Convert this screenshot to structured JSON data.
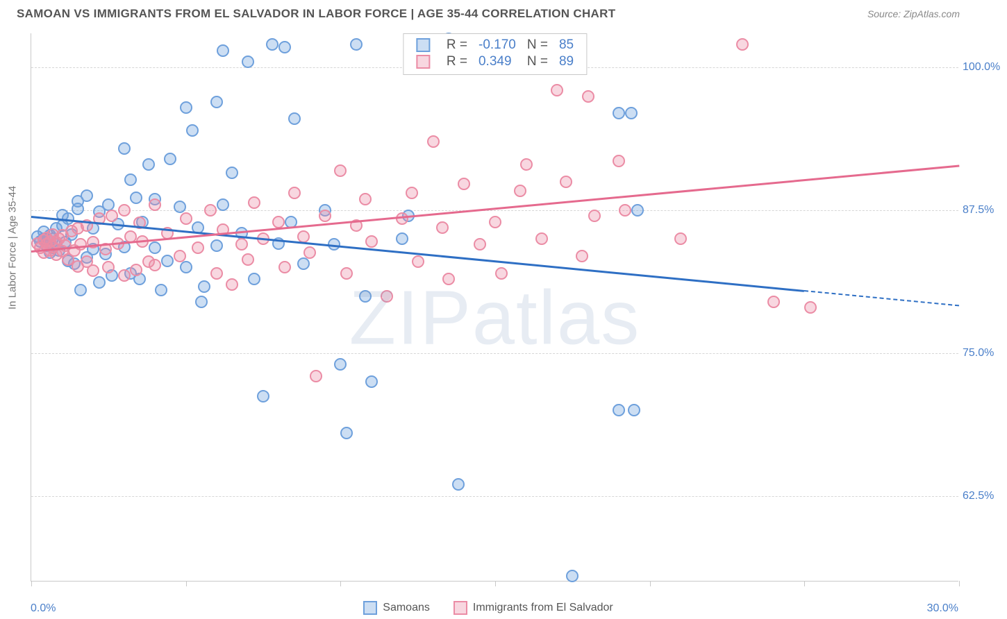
{
  "title": "SAMOAN VS IMMIGRANTS FROM EL SALVADOR IN LABOR FORCE | AGE 35-44 CORRELATION CHART",
  "source": "Source: ZipAtlas.com",
  "watermark": "ZIPatlas",
  "chart": {
    "type": "scatter",
    "ylabel": "In Labor Force | Age 35-44",
    "xlim": [
      0,
      30
    ],
    "ylim": [
      55,
      103
    ],
    "x_ticks": [
      0,
      5,
      10,
      15,
      20,
      25,
      30
    ],
    "x_tick_labels": [
      "0.0%",
      "30.0%"
    ],
    "y_ticks": [
      62.5,
      75.0,
      87.5,
      100.0
    ],
    "y_tick_labels": [
      "62.5%",
      "75.0%",
      "87.5%",
      "100.0%"
    ],
    "background_color": "#ffffff",
    "grid_color": "#d6d6d6",
    "axis_color": "#c8c8c8",
    "label_color": "#4a7fc9",
    "marker_size": 18,
    "series": [
      {
        "name": "Samoans",
        "color_fill": "rgba(110,160,220,0.35)",
        "color_border": "#6ea0dc",
        "line_color": "#2e6fc4",
        "R": "-0.170",
        "N": "85",
        "trend": {
          "x1": 0,
          "y1": 87.0,
          "x2": 25,
          "y2": 80.5,
          "dash_x2": 30,
          "dash_y2": 79.2
        },
        "points": [
          [
            0.2,
            85.2
          ],
          [
            0.3,
            84.8
          ],
          [
            0.4,
            85.0
          ],
          [
            0.4,
            85.6
          ],
          [
            0.5,
            85.1
          ],
          [
            0.5,
            84.4
          ],
          [
            0.6,
            85.3
          ],
          [
            0.6,
            83.8
          ],
          [
            0.7,
            85.0
          ],
          [
            0.7,
            84.2
          ],
          [
            0.8,
            84.5
          ],
          [
            0.8,
            85.9
          ],
          [
            0.9,
            84.0
          ],
          [
            1.0,
            86.2
          ],
          [
            1.0,
            87.1
          ],
          [
            1.1,
            84.7
          ],
          [
            1.2,
            86.8
          ],
          [
            1.2,
            83.1
          ],
          [
            1.3,
            85.4
          ],
          [
            1.4,
            82.8
          ],
          [
            1.5,
            88.3
          ],
          [
            1.5,
            87.6
          ],
          [
            1.6,
            80.5
          ],
          [
            1.8,
            83.4
          ],
          [
            1.8,
            88.8
          ],
          [
            2.0,
            84.1
          ],
          [
            2.0,
            85.9
          ],
          [
            2.2,
            81.2
          ],
          [
            2.2,
            87.4
          ],
          [
            2.4,
            83.7
          ],
          [
            2.5,
            88.0
          ],
          [
            2.6,
            81.8
          ],
          [
            2.8,
            86.3
          ],
          [
            3.0,
            84.3
          ],
          [
            3.0,
            92.9
          ],
          [
            3.2,
            82.0
          ],
          [
            3.2,
            90.2
          ],
          [
            3.4,
            88.6
          ],
          [
            3.5,
            81.5
          ],
          [
            3.6,
            86.5
          ],
          [
            3.8,
            91.5
          ],
          [
            4.0,
            84.2
          ],
          [
            4.0,
            88.5
          ],
          [
            4.2,
            80.5
          ],
          [
            4.4,
            83.1
          ],
          [
            4.5,
            92.0
          ],
          [
            4.8,
            87.8
          ],
          [
            5.0,
            96.5
          ],
          [
            5.0,
            82.5
          ],
          [
            5.2,
            94.5
          ],
          [
            5.4,
            86.0
          ],
          [
            5.5,
            79.5
          ],
          [
            5.6,
            80.8
          ],
          [
            6.0,
            97.0
          ],
          [
            6.0,
            84.4
          ],
          [
            6.2,
            101.5
          ],
          [
            6.2,
            88.0
          ],
          [
            6.5,
            90.8
          ],
          [
            6.8,
            85.5
          ],
          [
            7.0,
            100.5
          ],
          [
            7.2,
            81.5
          ],
          [
            7.5,
            71.2
          ],
          [
            7.8,
            102.0
          ],
          [
            8.0,
            84.6
          ],
          [
            8.2,
            101.8
          ],
          [
            8.4,
            86.5
          ],
          [
            8.5,
            95.5
          ],
          [
            8.8,
            82.8
          ],
          [
            9.5,
            87.5
          ],
          [
            9.8,
            84.5
          ],
          [
            10.0,
            74.0
          ],
          [
            10.2,
            68.0
          ],
          [
            10.5,
            102.0
          ],
          [
            10.8,
            80.0
          ],
          [
            11.0,
            72.5
          ],
          [
            12.0,
            85.0
          ],
          [
            12.2,
            87.0
          ],
          [
            13.5,
            102.5
          ],
          [
            13.8,
            63.5
          ],
          [
            17.5,
            55.5
          ],
          [
            19.0,
            70.0
          ],
          [
            19.5,
            70.0
          ],
          [
            19.0,
            96.0
          ],
          [
            19.4,
            96.0
          ],
          [
            19.6,
            87.5
          ]
        ]
      },
      {
        "name": "Immigrants from El Salvador",
        "color_fill": "rgba(235,140,165,0.35)",
        "color_border": "#eb8ca5",
        "line_color": "#e56a8e",
        "R": "0.349",
        "N": "89",
        "trend": {
          "x1": 0,
          "y1": 84.0,
          "x2": 30,
          "y2": 91.5
        },
        "points": [
          [
            0.2,
            84.6
          ],
          [
            0.3,
            84.2
          ],
          [
            0.4,
            84.9
          ],
          [
            0.4,
            83.8
          ],
          [
            0.5,
            84.5
          ],
          [
            0.5,
            85.1
          ],
          [
            0.6,
            84.0
          ],
          [
            0.6,
            84.8
          ],
          [
            0.7,
            84.3
          ],
          [
            0.7,
            85.4
          ],
          [
            0.8,
            83.6
          ],
          [
            0.8,
            84.7
          ],
          [
            0.9,
            85.0
          ],
          [
            1.0,
            83.9
          ],
          [
            1.0,
            85.3
          ],
          [
            1.1,
            84.4
          ],
          [
            1.2,
            83.2
          ],
          [
            1.3,
            85.7
          ],
          [
            1.4,
            84.0
          ],
          [
            1.5,
            82.6
          ],
          [
            1.5,
            85.9
          ],
          [
            1.6,
            84.5
          ],
          [
            1.8,
            83.0
          ],
          [
            1.8,
            86.2
          ],
          [
            2.0,
            84.7
          ],
          [
            2.0,
            82.2
          ],
          [
            2.2,
            86.8
          ],
          [
            2.4,
            84.1
          ],
          [
            2.5,
            82.5
          ],
          [
            2.6,
            87.0
          ],
          [
            2.8,
            84.6
          ],
          [
            3.0,
            81.8
          ],
          [
            3.0,
            87.5
          ],
          [
            3.2,
            85.2
          ],
          [
            3.4,
            82.3
          ],
          [
            3.5,
            86.4
          ],
          [
            3.6,
            84.8
          ],
          [
            3.8,
            83.0
          ],
          [
            4.0,
            88.0
          ],
          [
            4.0,
            82.7
          ],
          [
            4.4,
            85.5
          ],
          [
            4.8,
            83.5
          ],
          [
            5.0,
            86.8
          ],
          [
            5.4,
            84.2
          ],
          [
            5.8,
            87.5
          ],
          [
            6.0,
            82.0
          ],
          [
            6.2,
            85.8
          ],
          [
            6.5,
            81.0
          ],
          [
            6.8,
            84.5
          ],
          [
            7.0,
            83.2
          ],
          [
            7.2,
            88.2
          ],
          [
            7.5,
            85.0
          ],
          [
            8.0,
            86.5
          ],
          [
            8.2,
            82.5
          ],
          [
            8.5,
            89.0
          ],
          [
            8.8,
            85.2
          ],
          [
            9.0,
            83.8
          ],
          [
            9.2,
            73.0
          ],
          [
            9.5,
            87.0
          ],
          [
            10.0,
            91.0
          ],
          [
            10.2,
            82.0
          ],
          [
            10.5,
            86.2
          ],
          [
            10.8,
            88.5
          ],
          [
            11.0,
            84.8
          ],
          [
            11.5,
            80.0
          ],
          [
            12.0,
            86.8
          ],
          [
            12.3,
            89.0
          ],
          [
            12.5,
            83.0
          ],
          [
            13.0,
            93.5
          ],
          [
            13.3,
            86.0
          ],
          [
            13.5,
            81.5
          ],
          [
            14.0,
            89.8
          ],
          [
            14.5,
            84.5
          ],
          [
            15.0,
            86.5
          ],
          [
            15.2,
            82.0
          ],
          [
            15.8,
            89.2
          ],
          [
            16.0,
            91.5
          ],
          [
            16.5,
            85.0
          ],
          [
            17.0,
            98.0
          ],
          [
            17.3,
            90.0
          ],
          [
            17.8,
            83.5
          ],
          [
            18.0,
            97.5
          ],
          [
            18.2,
            87.0
          ],
          [
            19.0,
            91.8
          ],
          [
            19.2,
            87.5
          ],
          [
            21.0,
            85.0
          ],
          [
            23.0,
            102.0
          ],
          [
            24.0,
            79.5
          ],
          [
            25.2,
            79.0
          ]
        ]
      }
    ]
  }
}
